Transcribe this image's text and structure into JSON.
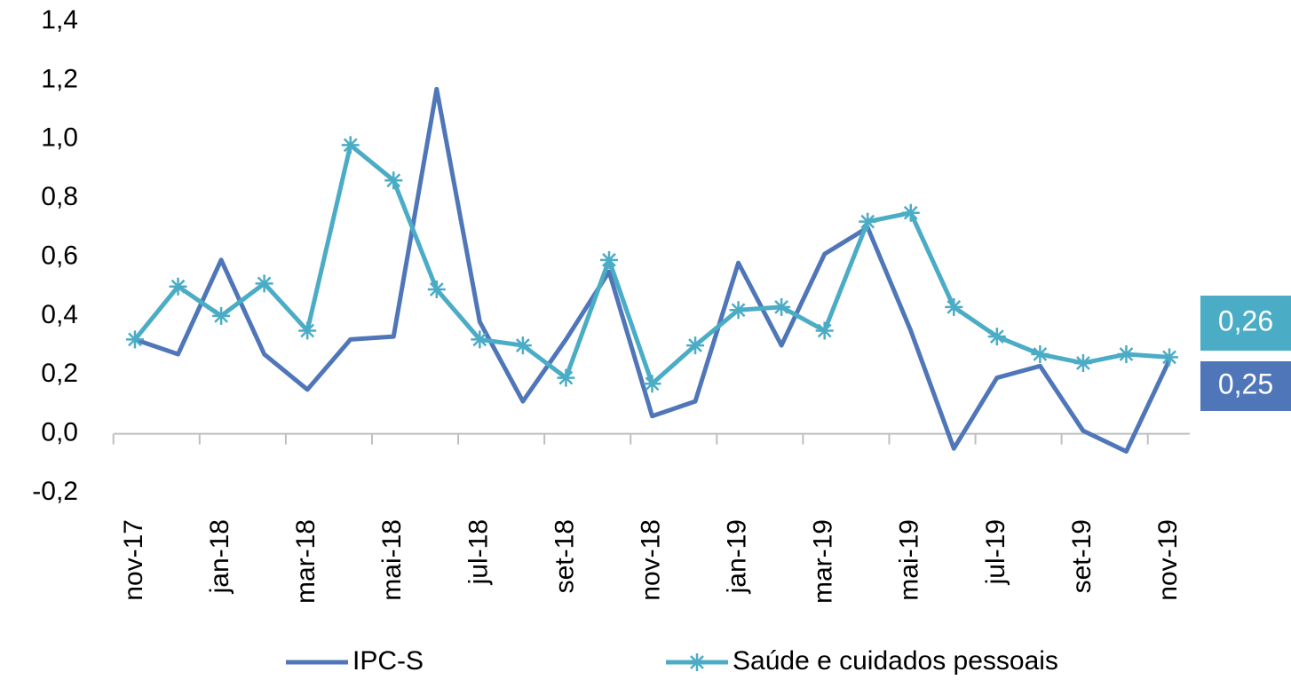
{
  "chart_data": {
    "type": "line",
    "categories": [
      "nov-17",
      null,
      "jan-18",
      null,
      "mar-18",
      null,
      "mai-18",
      null,
      "jul-18",
      null,
      "set-18",
      null,
      "nov-18",
      null,
      "jan-19",
      null,
      "mar-19",
      null,
      "mai-19",
      null,
      "jul-19",
      null,
      "set-19",
      null,
      "nov-19"
    ],
    "series": [
      {
        "name": "IPC-S",
        "color": "#4f76b8",
        "values": [
          0.32,
          0.27,
          0.59,
          0.27,
          0.15,
          0.32,
          0.33,
          1.17,
          0.38,
          0.11,
          0.32,
          0.55,
          0.06,
          0.11,
          0.58,
          0.3,
          0.61,
          0.7,
          0.35,
          -0.05,
          0.19,
          0.23,
          0.01,
          -0.06,
          0.25
        ],
        "value_labels": [
          null,
          null,
          null,
          null,
          null,
          null,
          null,
          null,
          null,
          null,
          null,
          null,
          null,
          null,
          null,
          null,
          null,
          null,
          null,
          null,
          null,
          null,
          null,
          null,
          "0,25"
        ]
      },
      {
        "name": "Saúde e cuidados pessoais",
        "color": "#4bacc6",
        "marker": "asterisk",
        "values": [
          0.32,
          0.5,
          0.4,
          0.51,
          0.35,
          0.98,
          0.86,
          0.49,
          0.32,
          0.3,
          0.19,
          0.59,
          0.17,
          0.3,
          0.42,
          0.43,
          0.35,
          0.72,
          0.75,
          0.43,
          0.33,
          0.27,
          0.24,
          0.27,
          0.26
        ],
        "value_labels": [
          null,
          null,
          null,
          null,
          null,
          null,
          null,
          null,
          null,
          null,
          null,
          null,
          null,
          null,
          null,
          null,
          null,
          null,
          null,
          null,
          null,
          null,
          null,
          null,
          "0,26"
        ]
      }
    ],
    "ylim": [
      -0.2,
      1.4
    ],
    "yticks": [
      {
        "value": -0.2,
        "label": "-0,2"
      },
      {
        "value": 0,
        "label": "0,0"
      },
      {
        "value": 0.2,
        "label": "0,2"
      },
      {
        "value": 0.4,
        "label": "0,4"
      },
      {
        "value": 0.6,
        "label": "0,6"
      },
      {
        "value": 0.8,
        "label": "0,8"
      },
      {
        "value": 1.0,
        "label": "1,0"
      },
      {
        "value": 1.2,
        "label": "1,2"
      },
      {
        "value": 1.4,
        "label": "1,4"
      }
    ],
    "grid": false,
    "legend": "bottom"
  }
}
